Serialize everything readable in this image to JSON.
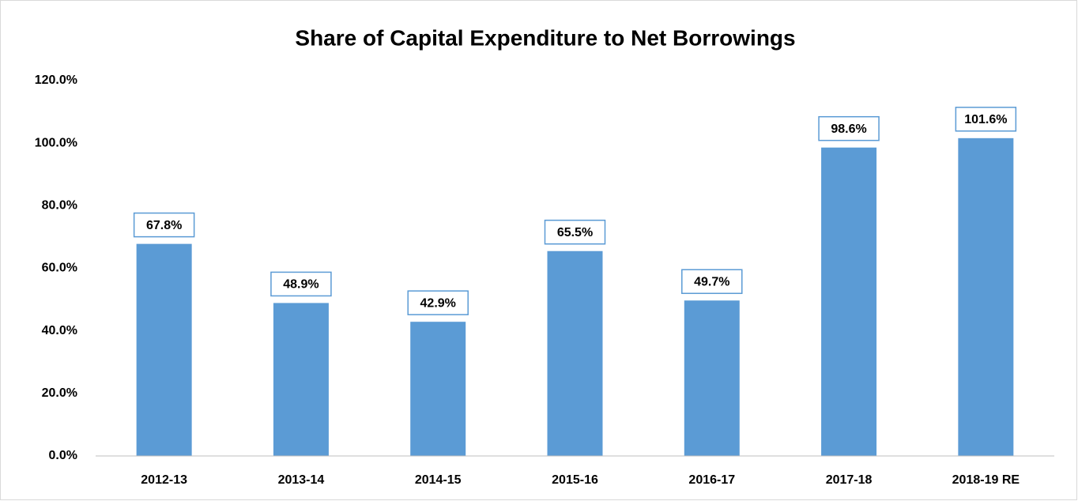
{
  "chart_data": {
    "type": "bar",
    "title": "Share of Capital Expenditure to Net Borrowings",
    "categories": [
      "2012-13",
      "2013-14",
      "2014-15",
      "2015-16",
      "2016-17",
      "2017-18",
      "2018-19 RE"
    ],
    "values": [
      67.8,
      48.9,
      42.9,
      65.5,
      49.7,
      98.6,
      101.6
    ],
    "value_labels": [
      "67.8%",
      "48.9%",
      "42.9%",
      "65.5%",
      "49.7%",
      "98.6%",
      "101.6%"
    ],
    "color": "#5b9bd5",
    "ylim": [
      0,
      120
    ],
    "yticks": [
      {
        "value": 0,
        "label": "0.0%"
      },
      {
        "value": 20,
        "label": "20.0%"
      },
      {
        "value": 40,
        "label": "40.0%"
      },
      {
        "value": 60,
        "label": "60.0%"
      },
      {
        "value": 80,
        "label": "80.0%"
      },
      {
        "value": 100,
        "label": "100.0%"
      },
      {
        "value": 120,
        "label": "120.0%"
      }
    ],
    "grid": false
  }
}
